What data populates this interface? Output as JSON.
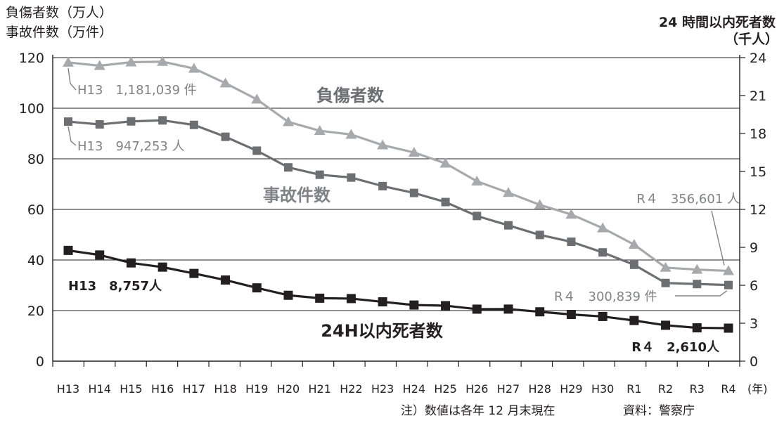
{
  "chart_data": {
    "type": "line",
    "y_left_label_line1": "負傷者数（万人）",
    "y_left_label_line2": "事故件数（万件）",
    "y_right_label_line1": "24 時間以内死者数",
    "y_right_label_line2": "（千人）",
    "x_unit": "(年)",
    "note": "注）数値は各年 12 月末現在",
    "source": "資料：警察庁",
    "categories": [
      "H13",
      "H14",
      "H15",
      "H16",
      "H17",
      "H18",
      "H19",
      "H20",
      "H21",
      "H22",
      "H23",
      "H24",
      "H25",
      "H26",
      "H27",
      "H28",
      "H29",
      "H30",
      "R1",
      "R2",
      "R3",
      "R4"
    ],
    "y_left_ticks": [
      "0",
      "20",
      "40",
      "60",
      "80",
      "100",
      "120"
    ],
    "y_right_ticks": [
      "0",
      "3",
      "6",
      "9",
      "12",
      "15",
      "18",
      "21",
      "24"
    ],
    "ylim_left": [
      0,
      120
    ],
    "ylim_right": [
      0,
      24
    ],
    "series": [
      {
        "name": "負傷者数",
        "axis": "left",
        "marker": "triangle",
        "color": "#a7a9ac",
        "values": [
          118.1,
          116.8,
          118.2,
          118.4,
          115.7,
          109.9,
          103.5,
          94.6,
          91.1,
          89.6,
          85.4,
          82.5,
          78.2,
          71.1,
          66.6,
          61.8,
          58.0,
          52.6,
          46.1,
          37.0,
          36.2,
          35.7
        ]
      },
      {
        "name": "事故件数",
        "axis": "left",
        "marker": "square",
        "color": "#6d6e71",
        "values": [
          94.7,
          93.6,
          94.8,
          95.2,
          93.4,
          88.7,
          83.2,
          76.6,
          73.7,
          72.6,
          69.2,
          66.5,
          62.9,
          57.4,
          53.7,
          49.9,
          47.2,
          43.0,
          38.1,
          30.9,
          30.5,
          30.1
        ]
      },
      {
        "name": "24H以内死者数",
        "axis": "right",
        "marker": "square",
        "color": "#231f20",
        "values": [
          8.757,
          8.396,
          7.768,
          7.436,
          6.937,
          6.415,
          5.796,
          5.209,
          4.979,
          4.948,
          4.691,
          4.438,
          4.388,
          4.113,
          4.117,
          3.904,
          3.694,
          3.532,
          3.215,
          2.839,
          2.636,
          2.61
        ]
      }
    ],
    "series_labels": {
      "injured": "負傷者数",
      "accidents": "事故件数",
      "deaths": "24H以内死者数"
    },
    "annotations": {
      "injured_start": "H13　1,181,039 件",
      "accidents_start": "H13　947,253 人",
      "deaths_start": "H13　8,757人",
      "injured_end": "R４　356,601 人",
      "accidents_end": "R４　300,839 件",
      "deaths_end": "R４　2,610人"
    },
    "grid": true
  }
}
